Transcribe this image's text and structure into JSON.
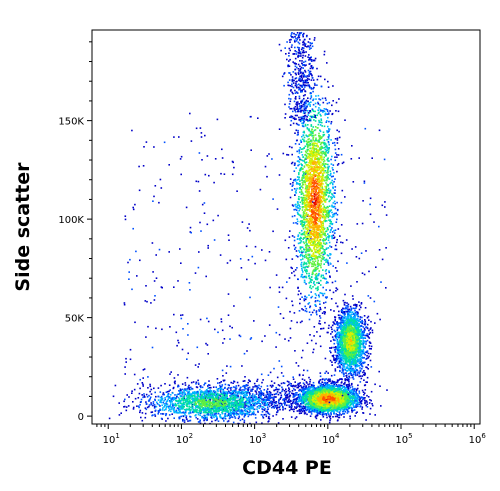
{
  "chart_data": {
    "type": "scatter",
    "subtype": "flow-cytometry-density-dot-plot",
    "title": "",
    "xlabel": "CD44 PE",
    "ylabel": "Side scatter",
    "x_scale": "log",
    "xlim": [
      6,
      1200000
    ],
    "ylim": [
      -4000,
      196000
    ],
    "grid": false,
    "legend": "none",
    "x_ticks": [
      {
        "value": 10,
        "base": "10",
        "exp": "1"
      },
      {
        "value": 100,
        "base": "10",
        "exp": "2"
      },
      {
        "value": 1000,
        "base": "10",
        "exp": "3"
      },
      {
        "value": 10000,
        "base": "10",
        "exp": "4"
      },
      {
        "value": 100000,
        "base": "10",
        "exp": "5"
      },
      {
        "value": 1000000,
        "base": "10",
        "exp": "6"
      }
    ],
    "y_ticks": [
      {
        "value": 0,
        "label": "0"
      },
      {
        "value": 50000,
        "label": "50K"
      },
      {
        "value": 100000,
        "label": "100K"
      },
      {
        "value": 150000,
        "label": "150K"
      }
    ],
    "density_colors": [
      "#0000c8",
      "#0050ff",
      "#00b4ff",
      "#00e0a0",
      "#60f040",
      "#d8f000",
      "#ffb000",
      "#ff5000",
      "#e00000"
    ],
    "populations": [
      {
        "center_x": 6500,
        "center_y": 110000,
        "spread_log_x": 0.13,
        "spread_y": 26000,
        "peak_density": 1.0
      },
      {
        "center_x": 10000,
        "center_y": 9000,
        "spread_log_x": 0.2,
        "spread_y": 3500,
        "peak_density": 1.0
      },
      {
        "center_x": 20000,
        "center_y": 38000,
        "spread_log_x": 0.1,
        "spread_y": 8000,
        "peak_density": 0.75
      },
      {
        "center_x": 250,
        "center_y": 7000,
        "spread_log_x": 0.45,
        "spread_y": 4500,
        "peak_density": 0.55
      }
    ]
  }
}
